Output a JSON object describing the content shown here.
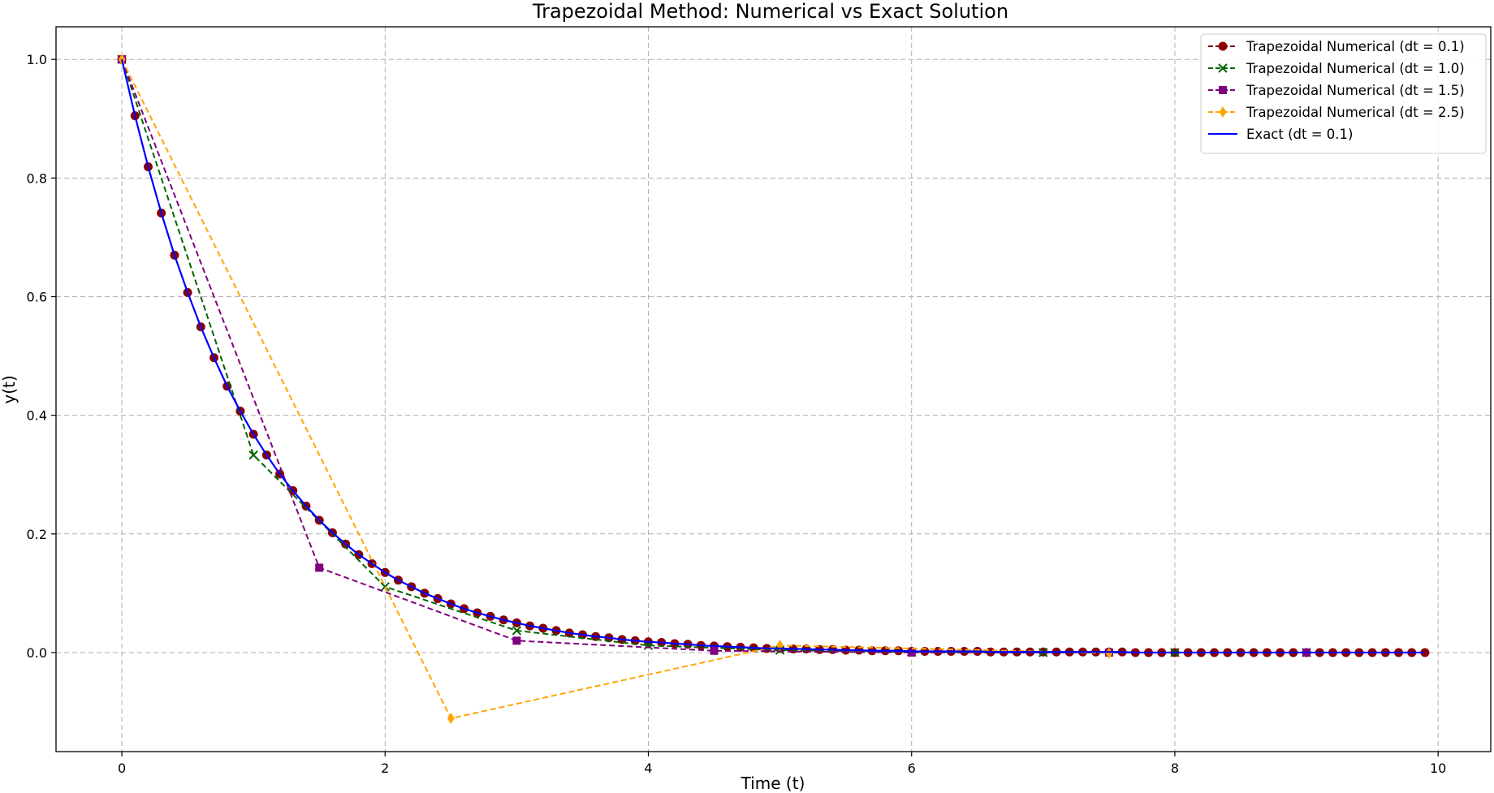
{
  "chart_data": {
    "type": "line",
    "title": "Trapezoidal Method: Numerical vs Exact Solution",
    "xlabel": "Time (t)",
    "ylabel": "y(t)",
    "xlim": [
      -0.5,
      10.4
    ],
    "ylim": [
      -0.167,
      1.055
    ],
    "xticks": [
      0,
      2,
      4,
      6,
      8,
      10
    ],
    "yticks": [
      0.0,
      0.2,
      0.4,
      0.6,
      0.8,
      1.0
    ],
    "xtick_labels": [
      "0",
      "2",
      "4",
      "6",
      "8",
      "10"
    ],
    "ytick_labels": [
      "0.0",
      "0.2",
      "0.4",
      "0.6",
      "0.8",
      "1.0"
    ],
    "grid": true,
    "legend_position": "top-right",
    "series": [
      {
        "name": "Trapezoidal Numerical (dt = 0.1)",
        "color": "#8b0000",
        "marker": "circle",
        "dashed": true,
        "x": [
          0.0,
          0.1,
          0.2,
          0.3,
          0.4,
          0.5,
          0.6,
          0.7,
          0.8,
          0.9,
          1.0,
          1.1,
          1.2,
          1.3,
          1.4,
          1.5,
          1.6,
          1.7,
          1.8,
          1.9,
          2.0,
          2.1,
          2.2,
          2.3,
          2.4,
          2.5,
          2.6,
          2.7,
          2.8,
          2.9,
          3.0,
          3.1,
          3.2,
          3.3,
          3.4,
          3.5,
          3.6,
          3.7,
          3.8,
          3.9,
          4.0,
          4.1,
          4.2,
          4.3,
          4.4,
          4.5,
          4.6,
          4.7,
          4.8,
          4.9,
          5.0,
          5.1,
          5.2,
          5.3,
          5.4,
          5.5,
          5.6,
          5.7,
          5.8,
          5.9,
          6.0,
          6.1,
          6.2,
          6.3,
          6.4,
          6.5,
          6.6,
          6.7,
          6.8,
          6.9,
          7.0,
          7.1,
          7.2,
          7.3,
          7.4,
          7.5,
          7.6,
          7.7,
          7.8,
          7.9,
          8.0,
          8.1,
          8.2,
          8.3,
          8.4,
          8.5,
          8.6,
          8.7,
          8.8,
          8.9,
          9.0,
          9.1,
          9.2,
          9.3,
          9.4,
          9.5,
          9.6,
          9.7,
          9.8,
          9.9
        ],
        "y": [
          1.0,
          0.905,
          0.819,
          0.741,
          0.67,
          0.607,
          0.549,
          0.497,
          0.449,
          0.407,
          0.368,
          0.333,
          0.301,
          0.273,
          0.247,
          0.223,
          0.202,
          0.183,
          0.165,
          0.15,
          0.135,
          0.122,
          0.111,
          0.1,
          0.091,
          0.082,
          0.074,
          0.067,
          0.061,
          0.055,
          0.05,
          0.045,
          0.041,
          0.037,
          0.033,
          0.03,
          0.027,
          0.025,
          0.022,
          0.02,
          0.018,
          0.017,
          0.015,
          0.014,
          0.012,
          0.011,
          0.01,
          0.009,
          0.008,
          0.007,
          0.007,
          0.006,
          0.006,
          0.005,
          0.005,
          0.004,
          0.004,
          0.003,
          0.003,
          0.003,
          0.002,
          0.002,
          0.002,
          0.002,
          0.002,
          0.002,
          0.001,
          0.001,
          0.001,
          0.001,
          0.001,
          0.001,
          0.001,
          0.001,
          0.001,
          0.001,
          0.001,
          0.0,
          0.0,
          0.0,
          0.0,
          0.0,
          0.0,
          0.0,
          0.0,
          0.0,
          0.0,
          0.0,
          0.0,
          0.0,
          0.0,
          0.0,
          0.0,
          0.0,
          0.0,
          0.0,
          0.0,
          0.0,
          0.0,
          0.0
        ]
      },
      {
        "name": "Trapezoidal Numerical (dt = 1.0)",
        "color": "#006400",
        "marker": "x",
        "dashed": true,
        "x": [
          0,
          1,
          2,
          3,
          4,
          5,
          6,
          7,
          8,
          9
        ],
        "y": [
          1.0,
          0.333,
          0.111,
          0.037,
          0.012,
          0.004,
          0.001,
          0.0,
          0.0,
          0.0
        ]
      },
      {
        "name": "Trapezoidal Numerical (dt = 1.5)",
        "color": "#800080",
        "marker": "square",
        "dashed": true,
        "x": [
          0,
          1.5,
          3.0,
          4.5,
          6.0,
          7.5,
          9.0
        ],
        "y": [
          1.0,
          0.143,
          0.02,
          0.003,
          0.0,
          0.0,
          0.0
        ]
      },
      {
        "name": "Trapezoidal Numerical (dt = 2.5)",
        "color": "#ffa500",
        "marker": "diamond",
        "dashed": true,
        "x": [
          0,
          2.5,
          5.0,
          7.5
        ],
        "y": [
          1.0,
          -0.111,
          0.012,
          -0.001
        ]
      },
      {
        "name": "Exact (dt = 0.1)",
        "color": "#0000ff",
        "marker": "none",
        "dashed": false,
        "x": [
          0.0,
          0.1,
          0.2,
          0.3,
          0.4,
          0.5,
          0.6,
          0.7,
          0.8,
          0.9,
          1.0,
          1.1,
          1.2,
          1.3,
          1.4,
          1.5,
          1.6,
          1.7,
          1.8,
          1.9,
          2.0,
          2.1,
          2.2,
          2.3,
          2.4,
          2.5,
          2.6,
          2.7,
          2.8,
          2.9,
          3.0,
          3.1,
          3.2,
          3.3,
          3.4,
          3.5,
          3.6,
          3.7,
          3.8,
          3.9,
          4.0,
          4.1,
          4.2,
          4.3,
          4.4,
          4.5,
          4.6,
          4.7,
          4.8,
          4.9,
          5.0,
          5.1,
          5.2,
          5.3,
          5.4,
          5.5,
          5.6,
          5.7,
          5.8,
          5.9,
          6.0,
          6.1,
          6.2,
          6.3,
          6.4,
          6.5,
          6.6,
          6.7,
          6.8,
          6.9,
          7.0,
          7.1,
          7.2,
          7.3,
          7.4,
          7.5,
          7.6,
          7.7,
          7.8,
          7.9,
          8.0,
          8.1,
          8.2,
          8.3,
          8.4,
          8.5,
          8.6,
          8.7,
          8.8,
          8.9,
          9.0,
          9.1,
          9.2,
          9.3,
          9.4,
          9.5,
          9.6,
          9.7,
          9.8,
          9.9
        ],
        "y": [
          1.0,
          0.905,
          0.819,
          0.741,
          0.67,
          0.607,
          0.549,
          0.497,
          0.449,
          0.407,
          0.368,
          0.333,
          0.301,
          0.273,
          0.247,
          0.223,
          0.202,
          0.183,
          0.165,
          0.15,
          0.135,
          0.122,
          0.111,
          0.1,
          0.091,
          0.082,
          0.074,
          0.067,
          0.061,
          0.055,
          0.05,
          0.045,
          0.041,
          0.037,
          0.033,
          0.03,
          0.027,
          0.025,
          0.022,
          0.02,
          0.018,
          0.017,
          0.015,
          0.014,
          0.012,
          0.011,
          0.01,
          0.009,
          0.008,
          0.007,
          0.007,
          0.006,
          0.006,
          0.005,
          0.005,
          0.004,
          0.004,
          0.003,
          0.003,
          0.003,
          0.002,
          0.002,
          0.002,
          0.002,
          0.002,
          0.002,
          0.001,
          0.001,
          0.001,
          0.001,
          0.001,
          0.001,
          0.001,
          0.001,
          0.001,
          0.001,
          0.001,
          0.0,
          0.0,
          0.0,
          0.0,
          0.0,
          0.0,
          0.0,
          0.0,
          0.0,
          0.0,
          0.0,
          0.0,
          0.0,
          0.0,
          0.0,
          0.0,
          0.0,
          0.0,
          0.0,
          0.0,
          0.0,
          0.0,
          0.0
        ]
      }
    ]
  }
}
